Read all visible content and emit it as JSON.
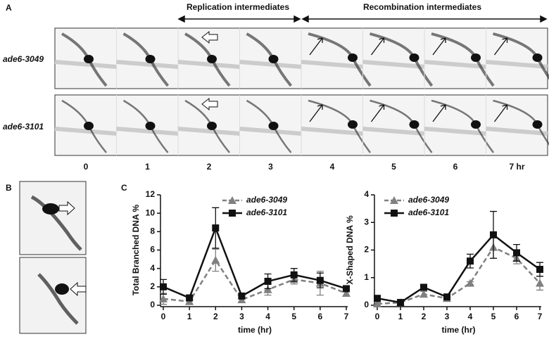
{
  "panels": {
    "a_label": "A",
    "b_label": "B",
    "c_label": "C",
    "replication": "Replication intermediates",
    "recombination": "Recombination intermediates",
    "rows": [
      "ade6-3049",
      "ade6-3101"
    ],
    "lanes": [
      "0",
      "1",
      "2",
      "3",
      "4",
      "5",
      "6",
      "7 hr"
    ]
  },
  "chart_data": [
    {
      "type": "line",
      "ylabel": "Total Branched DNA %",
      "xlabel": "time (hr)",
      "x": [
        0,
        1,
        2,
        3,
        4,
        5,
        6,
        7
      ],
      "xlim": [
        0,
        7
      ],
      "xticks": [
        0,
        1,
        2,
        3,
        4,
        5,
        6,
        7
      ],
      "ylim": [
        0,
        12
      ],
      "yticks": [
        0,
        2,
        4,
        6,
        8,
        10,
        12
      ],
      "series": [
        {
          "name": "ade6-3049",
          "color": "#808080",
          "marker": "triangle",
          "dashed": true,
          "values": [
            0.7,
            0.4,
            4.9,
            0.6,
            1.7,
            2.8,
            2.4,
            1.3
          ],
          "errors": [
            0.6,
            0.2,
            1.2,
            0.3,
            0.6,
            0.5,
            1.3,
            0.3
          ]
        },
        {
          "name": "ade6-3101",
          "color": "#111111",
          "marker": "square",
          "dashed": false,
          "values": [
            2.0,
            0.8,
            8.4,
            1.0,
            2.6,
            3.3,
            2.7,
            1.8
          ],
          "errors": [
            0.8,
            0.2,
            2.2,
            0.3,
            0.8,
            0.7,
            0.8,
            0.2
          ]
        }
      ]
    },
    {
      "type": "line",
      "ylabel": "X-Shaped DNA %",
      "xlabel": "time (hr)",
      "x": [
        0,
        1,
        2,
        3,
        4,
        5,
        6,
        7
      ],
      "xlim": [
        0,
        7
      ],
      "xticks": [
        0,
        1,
        2,
        3,
        4,
        5,
        6,
        7
      ],
      "ylim": [
        0,
        4
      ],
      "yticks": [
        0,
        1,
        2,
        3,
        4
      ],
      "series": [
        {
          "name": "ade6-3049",
          "color": "#808080",
          "marker": "triangle",
          "dashed": true,
          "values": [
            0.05,
            0.1,
            0.4,
            0.25,
            0.8,
            2.1,
            1.7,
            0.8
          ],
          "errors": [
            0.05,
            0.05,
            0.1,
            0.05,
            0.05,
            0.4,
            0.2,
            0.25
          ]
        },
        {
          "name": "ade6-3101",
          "color": "#111111",
          "marker": "square",
          "dashed": false,
          "values": [
            0.25,
            0.1,
            0.65,
            0.3,
            1.6,
            2.55,
            1.9,
            1.3
          ],
          "errors": [
            0.05,
            0.05,
            0.05,
            0.05,
            0.25,
            0.85,
            0.3,
            0.25
          ]
        }
      ]
    }
  ]
}
